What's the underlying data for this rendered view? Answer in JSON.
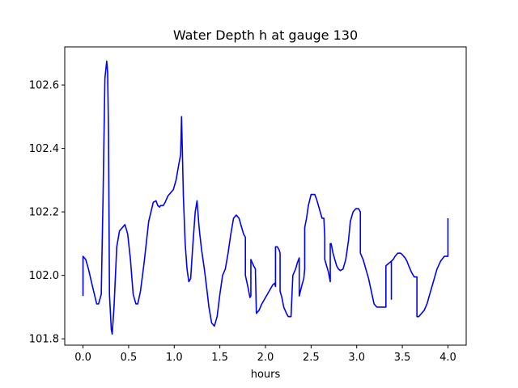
{
  "chart_data": {
    "type": "line",
    "title": "Water Depth h at gauge 130",
    "xlabel": "hours",
    "ylabel": "",
    "xlim": [
      -0.2,
      4.2
    ],
    "ylim": [
      101.78,
      102.72
    ],
    "grid": false,
    "xticks": [
      {
        "value": 0.0,
        "label": "0.0"
      },
      {
        "value": 0.5,
        "label": "0.5"
      },
      {
        "value": 1.0,
        "label": "1.0"
      },
      {
        "value": 1.5,
        "label": "1.5"
      },
      {
        "value": 2.0,
        "label": "2.0"
      },
      {
        "value": 2.5,
        "label": "2.5"
      },
      {
        "value": 3.0,
        "label": "3.0"
      },
      {
        "value": 3.5,
        "label": "3.5"
      },
      {
        "value": 4.0,
        "label": "4.0"
      }
    ],
    "yticks": [
      {
        "value": 101.8,
        "label": "101.8"
      },
      {
        "value": 102.0,
        "label": "102.0"
      },
      {
        "value": 102.2,
        "label": "102.2"
      },
      {
        "value": 102.4,
        "label": "102.4"
      },
      {
        "value": 102.6,
        "label": "102.6"
      }
    ],
    "series": [
      {
        "color": "#0000ff",
        "x": [
          0.0,
          0.0,
          0.03,
          0.06,
          0.1,
          0.15,
          0.17,
          0.2,
          0.22,
          0.24,
          0.26,
          0.27,
          0.28,
          0.29,
          0.31,
          0.32,
          0.34,
          0.37,
          0.4,
          0.43,
          0.46,
          0.49,
          0.52,
          0.55,
          0.58,
          0.6,
          0.63,
          0.67,
          0.72,
          0.77,
          0.8,
          0.82,
          0.84,
          0.85,
          0.86,
          0.88,
          0.9,
          0.93,
          0.96,
          0.99,
          1.02,
          1.05,
          1.07,
          1.08,
          1.09,
          1.1,
          1.12,
          1.14,
          1.16,
          1.18,
          1.2,
          1.23,
          1.25,
          1.27,
          1.28,
          1.3,
          1.33,
          1.36,
          1.38,
          1.41,
          1.44,
          1.47,
          1.5,
          1.53,
          1.56,
          1.59,
          1.62,
          1.65,
          1.68,
          1.71,
          1.74,
          1.76,
          1.78,
          1.78,
          1.81,
          1.83,
          1.84,
          1.84,
          1.87,
          1.89,
          1.89,
          1.9,
          1.93,
          1.96,
          2.0,
          2.04,
          2.08,
          2.1,
          2.11,
          2.11,
          2.13,
          2.15,
          2.16,
          2.16,
          2.18,
          2.2,
          2.23,
          2.25,
          2.27,
          2.28,
          2.3,
          2.33,
          2.35,
          2.37,
          2.37,
          2.4,
          2.42,
          2.43,
          2.43,
          2.45,
          2.47,
          2.5,
          2.52,
          2.54,
          2.56,
          2.58,
          2.6,
          2.62,
          2.64,
          2.65,
          2.65,
          2.67,
          2.69,
          2.71,
          2.71,
          2.72,
          2.74,
          2.76,
          2.78,
          2.8,
          2.82,
          2.85,
          2.88,
          2.91,
          2.93,
          2.96,
          2.99,
          3.02,
          3.03,
          3.04,
          3.04,
          3.07,
          3.1,
          3.13,
          3.16,
          3.19,
          3.22,
          3.25,
          3.28,
          3.3,
          3.32,
          3.32,
          3.34,
          3.36,
          3.38,
          3.38,
          3.38,
          3.4,
          3.42,
          3.45,
          3.48,
          3.5,
          3.53,
          3.55,
          3.57,
          3.6,
          3.63,
          3.66,
          3.66,
          3.68,
          3.71,
          3.74,
          3.77,
          3.8,
          3.84,
          3.88,
          3.92,
          3.96,
          4.0,
          4.0
        ],
        "y": [
          101.935,
          102.06,
          102.05,
          102.02,
          101.97,
          101.91,
          101.91,
          101.94,
          102.25,
          102.62,
          102.675,
          102.64,
          102.44,
          101.94,
          101.83,
          101.815,
          101.9,
          102.09,
          102.14,
          102.15,
          102.16,
          102.13,
          102.05,
          101.94,
          101.91,
          101.91,
          101.95,
          102.04,
          102.17,
          102.23,
          102.235,
          102.22,
          102.215,
          102.22,
          102.22,
          102.22,
          102.23,
          102.25,
          102.26,
          102.27,
          102.3,
          102.35,
          102.38,
          102.5,
          102.38,
          102.25,
          102.1,
          102.02,
          101.98,
          101.99,
          102.08,
          102.2,
          102.235,
          102.16,
          102.13,
          102.08,
          102.02,
          101.95,
          101.9,
          101.85,
          101.84,
          101.87,
          101.94,
          102.0,
          102.02,
          102.07,
          102.13,
          102.18,
          102.19,
          102.18,
          102.15,
          102.13,
          102.12,
          102.0,
          101.96,
          101.93,
          101.935,
          102.05,
          102.03,
          102.02,
          102.01,
          101.88,
          101.89,
          101.91,
          101.93,
          101.95,
          101.97,
          101.975,
          101.965,
          102.09,
          102.09,
          102.08,
          102.07,
          101.95,
          101.93,
          101.9,
          101.88,
          101.87,
          101.87,
          101.87,
          102.0,
          102.02,
          102.04,
          102.055,
          101.935,
          101.97,
          101.99,
          102.02,
          102.15,
          102.18,
          102.22,
          102.255,
          102.255,
          102.255,
          102.24,
          102.22,
          102.2,
          102.18,
          102.18,
          102.12,
          102.05,
          102.03,
          102.01,
          101.98,
          102.1,
          102.1,
          102.07,
          102.05,
          102.03,
          102.02,
          102.015,
          102.02,
          102.05,
          102.11,
          102.17,
          102.2,
          102.21,
          102.21,
          102.205,
          102.2,
          102.07,
          102.05,
          102.02,
          101.99,
          101.95,
          101.91,
          101.9,
          101.9,
          101.9,
          101.9,
          101.9,
          102.03,
          102.035,
          102.04,
          102.045,
          101.925,
          102.045,
          102.05,
          102.06,
          102.07,
          102.07,
          102.065,
          102.055,
          102.045,
          102.03,
          102.01,
          101.995,
          101.995,
          101.87,
          101.87,
          101.88,
          101.89,
          101.91,
          101.94,
          101.98,
          102.02,
          102.045,
          102.06,
          102.06,
          102.18
        ]
      }
    ]
  }
}
